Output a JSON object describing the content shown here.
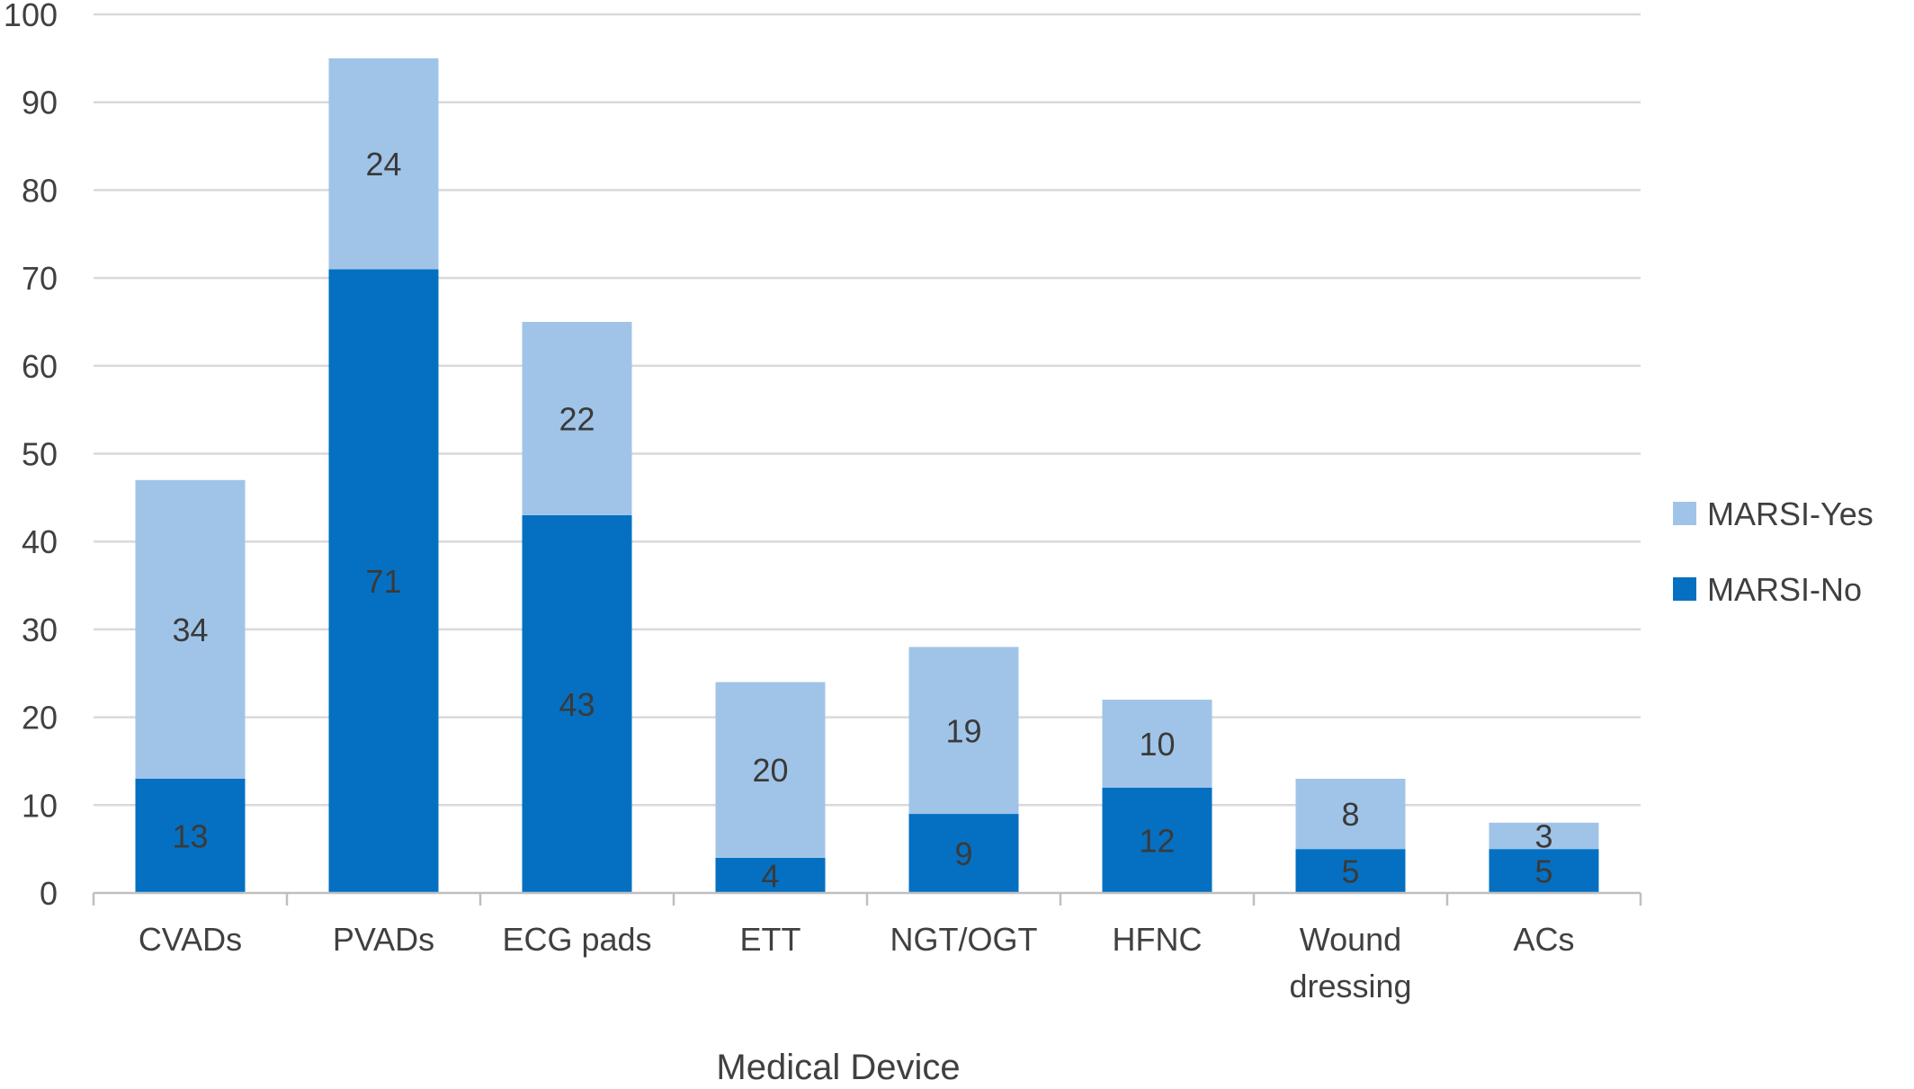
{
  "chart_data": {
    "type": "bar",
    "stacked": true,
    "title": "",
    "xlabel": "Medical Device",
    "ylabel": "",
    "ylim": [
      0,
      100
    ],
    "yticks": [
      0,
      10,
      20,
      30,
      40,
      50,
      60,
      70,
      80,
      90,
      100
    ],
    "grid": true,
    "legend_position": "right",
    "categories": [
      [
        "CVADs"
      ],
      [
        "PVADs"
      ],
      [
        "ECG pads"
      ],
      [
        "ETT"
      ],
      [
        "NGT/OGT"
      ],
      [
        "HFNC"
      ],
      [
        "Wound",
        "dressing"
      ],
      [
        "ACs"
      ]
    ],
    "series": [
      {
        "name": "MARSI-No",
        "color": "#0570c1",
        "values": [
          13,
          71,
          43,
          4,
          9,
          12,
          5,
          5
        ]
      },
      {
        "name": "MARSI-Yes",
        "color": "#a0c4e8",
        "values": [
          34,
          24,
          22,
          20,
          19,
          10,
          8,
          3
        ]
      }
    ],
    "legend_order": [
      "MARSI-Yes",
      "MARSI-No"
    ],
    "colors": {
      "grid": "#d9d9d9",
      "axis": "#bfbfbf",
      "text": "#404040",
      "data_label": "#3a3a3a"
    }
  }
}
